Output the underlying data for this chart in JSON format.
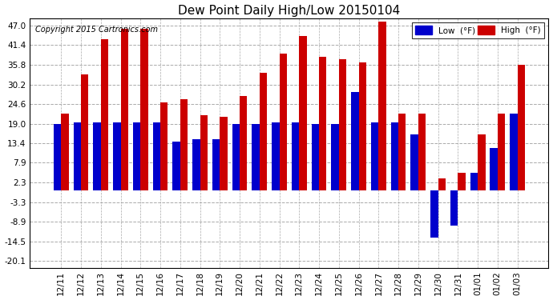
{
  "title": "Dew Point Daily High/Low 20150104",
  "copyright": "Copyright 2015 Cartronics.com",
  "dates": [
    "12/11",
    "12/12",
    "12/13",
    "12/14",
    "12/15",
    "12/16",
    "12/17",
    "12/18",
    "12/19",
    "12/20",
    "12/21",
    "12/22",
    "12/23",
    "12/24",
    "12/25",
    "12/26",
    "12/27",
    "12/28",
    "12/29",
    "12/30",
    "12/31",
    "01/01",
    "01/02",
    "01/03"
  ],
  "high": [
    22.0,
    33.0,
    43.0,
    46.0,
    46.0,
    25.0,
    26.0,
    21.5,
    21.0,
    27.0,
    33.5,
    39.0,
    44.0,
    38.0,
    37.5,
    36.5,
    48.0,
    22.0,
    22.0,
    3.5,
    5.0,
    16.0,
    22.0,
    35.8
  ],
  "low": [
    19.0,
    19.5,
    19.5,
    19.5,
    19.5,
    19.5,
    14.0,
    14.5,
    14.5,
    19.0,
    19.0,
    19.5,
    19.5,
    19.0,
    19.0,
    28.0,
    19.5,
    19.5,
    16.0,
    -13.5,
    -10.0,
    5.0,
    12.0,
    22.0
  ],
  "high_color": "#cc0000",
  "low_color": "#0000cc",
  "background_color": "#ffffff",
  "plot_bg_color": "#ffffff",
  "grid_color": "#aaaaaa",
  "yticks": [
    -20.1,
    -14.5,
    -8.9,
    -3.3,
    2.3,
    7.9,
    13.4,
    19.0,
    24.6,
    30.2,
    35.8,
    41.4,
    47.0
  ],
  "ylim": [
    -22,
    49
  ],
  "bar_width": 0.38,
  "legend_labels": [
    "Low  (°F)",
    "High  (°F)"
  ]
}
